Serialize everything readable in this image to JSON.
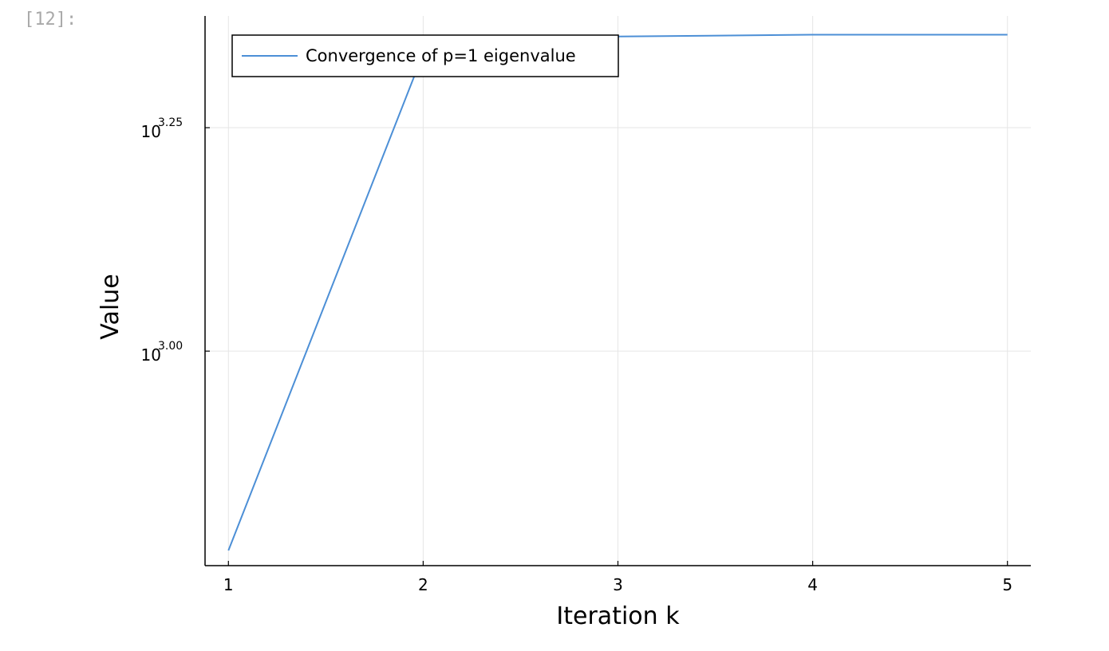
{
  "cell": {
    "prompt": "[12]:"
  },
  "chart_data": {
    "type": "line",
    "title": "",
    "xlabel": "Iteration k",
    "ylabel": "Value",
    "y_scale": "log10",
    "x_ticks": [
      1,
      2,
      3,
      4,
      5
    ],
    "y_ticks": [
      {
        "value_log10": 3.0,
        "base": "10",
        "exponent": "3.00"
      },
      {
        "value_log10": 3.25,
        "base": "10",
        "exponent": "3.25"
      }
    ],
    "xlim": [
      0.88,
      5.12
    ],
    "ylim_log10": [
      2.76,
      3.375
    ],
    "grid": true,
    "legend_position": "top-left",
    "series": [
      {
        "name": "Convergence of p=1 eigenvalue",
        "color": "#4c8fd6",
        "x": [
          1,
          2,
          3,
          4,
          5
        ],
        "y_log10": [
          2.777,
          3.333,
          3.352,
          3.354,
          3.354
        ]
      }
    ]
  }
}
